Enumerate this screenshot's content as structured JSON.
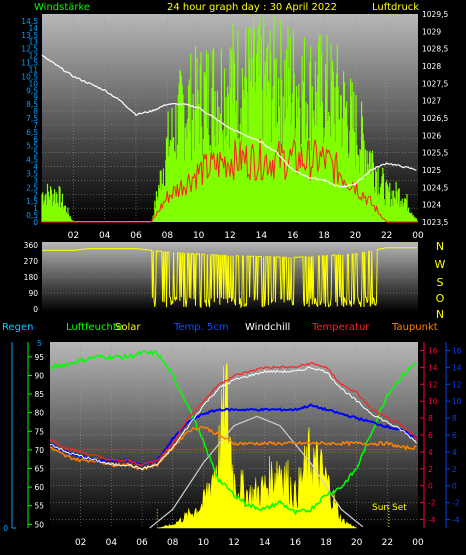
{
  "header": {
    "left_label": "Windstärke",
    "title": "24 hour graph day : 30 April 2022",
    "right_label": "Luftdruck"
  },
  "direction_labels": [
    "N",
    "W",
    "S",
    "O",
    "N"
  ],
  "legend": {
    "regen": "Regen",
    "luftfeuchte": "Luftfeuchte",
    "solar": "Solar",
    "temp5cm": "Temp. 5cm",
    "windchill": "Windchill",
    "temperatur": "Temperatur",
    "taupunkt": "Taupunkt"
  },
  "sunset_label": "Sun Set",
  "colors": {
    "wind_gust": "#80ff00",
    "wind_avg": "#ff2020",
    "pressure": "#ffffff",
    "direction": "#ffff00",
    "humidity": "#00ff00",
    "solar": "#ffff00",
    "temp5cm": "#0000ff",
    "windchill": "#ffffff",
    "temperatur": "#ff2020",
    "taupunkt": "#ff8000",
    "left_axis": "#00a0ff",
    "humidity_axis": "#00ff00",
    "temp_axis": "#ff0040",
    "temp5_axis": "#0040ff"
  },
  "chart_data": [
    {
      "type": "line",
      "name_left_axis": "Windstärke",
      "name_right_axis": "Luftdruck",
      "x_ticks": [
        "02",
        "04",
        "06",
        "08",
        "10",
        "12",
        "14",
        "16",
        "18",
        "20",
        "22",
        "00"
      ],
      "xlim": [
        0,
        24
      ],
      "y_left_ticks": [
        "0",
        "0,5",
        "1",
        "1,5",
        "2",
        "2,5",
        "3",
        "3,5",
        "4",
        "4,5",
        "5",
        "5,5",
        "6",
        "6,5",
        "7",
        "7,5",
        "8",
        "8,5",
        "9",
        "9,5",
        "10",
        "10,5",
        "11",
        "11,5",
        "12",
        "12,5",
        "13",
        "13,5",
        "14",
        "14,5"
      ],
      "ylim_left": [
        0,
        15
      ],
      "y_right_ticks": [
        "1023,5",
        "1024",
        "1024,5",
        "1025",
        "1025,5",
        "1026",
        "1026,5",
        "1027",
        "1027,5",
        "1028",
        "1028,5",
        "1029",
        "1029,5"
      ],
      "ylim_right": [
        1023.5,
        1029.5
      ],
      "pressure": {
        "x": [
          0,
          1,
          2,
          3,
          4,
          5,
          6,
          7,
          8,
          9,
          10,
          11,
          12,
          13,
          14,
          15,
          16,
          17,
          18,
          19,
          20,
          21,
          22,
          23,
          24
        ],
        "y": [
          1028.3,
          1028.0,
          1027.7,
          1027.5,
          1027.3,
          1027.0,
          1026.6,
          1026.7,
          1026.9,
          1026.9,
          1026.8,
          1026.5,
          1026.2,
          1026.0,
          1025.8,
          1025.5,
          1025.0,
          1024.8,
          1024.7,
          1024.5,
          1024.6,
          1025.0,
          1025.2,
          1025.1,
          1025.0
        ]
      },
      "gust_max": {
        "x": [
          0,
          1,
          2,
          3,
          4,
          5,
          6,
          7,
          8,
          9,
          10,
          11,
          12,
          13,
          14,
          15,
          16,
          17,
          18,
          19,
          20,
          21,
          22,
          23,
          24
        ],
        "y": [
          3,
          3,
          0,
          0,
          0,
          0,
          0,
          0,
          8,
          12,
          13,
          14,
          15,
          15,
          15,
          15,
          15,
          14,
          14,
          13,
          10,
          7,
          3,
          3,
          0
        ]
      },
      "wind_avg": {
        "x": [
          0,
          1,
          2,
          3,
          4,
          5,
          6,
          7,
          8,
          9,
          10,
          11,
          12,
          13,
          14,
          15,
          16,
          17,
          18,
          19,
          20,
          21,
          22,
          23,
          24
        ],
        "y": [
          0,
          0,
          0,
          0,
          0,
          0,
          0,
          0,
          2,
          3,
          4,
          4.5,
          5,
          5,
          5,
          5,
          5,
          5,
          5,
          4,
          3,
          1.5,
          0,
          0,
          0
        ]
      }
    },
    {
      "type": "line",
      "name": "Windrichtung",
      "y_ticks": [
        "360",
        "270",
        "180",
        "90",
        "0"
      ],
      "ylim": [
        0,
        360
      ],
      "x": [
        0,
        2,
        3,
        6,
        8,
        12,
        16,
        18,
        20,
        22,
        24
      ],
      "y": [
        330,
        330,
        340,
        340,
        320,
        300,
        290,
        300,
        310,
        345,
        345
      ]
    },
    {
      "type": "line",
      "x_ticks": [
        "02",
        "04",
        "06",
        "08",
        "10",
        "12",
        "14",
        "16",
        "18",
        "20",
        "22",
        "00"
      ],
      "xlim": [
        0,
        24
      ],
      "humidity_axis": {
        "ticks": [
          "50",
          "55",
          "60",
          "65",
          "70",
          "75",
          "80",
          "85",
          "90",
          "95"
        ],
        "range": [
          49,
          99
        ]
      },
      "temp_axis": {
        "ticks": [
          "-4",
          "-2",
          "0",
          "2",
          "4",
          "6",
          "8",
          "10",
          "12",
          "14",
          "16"
        ],
        "range": [
          -5,
          17
        ]
      },
      "temp5_axis": {
        "ticks": [
          "-4",
          "-2",
          "0",
          "2",
          "4",
          "6",
          "8",
          "10",
          "12",
          "14",
          "16"
        ],
        "range": [
          -5,
          17
        ]
      },
      "regen_axis": {
        "ticks": [
          "0",
          "5"
        ],
        "range": [
          0,
          5
        ]
      },
      "humidity": {
        "x": [
          0,
          1,
          2,
          3,
          4,
          5,
          6,
          7,
          8,
          9,
          10,
          11,
          12,
          13,
          14,
          15,
          16,
          17,
          18,
          19,
          20,
          21,
          22,
          23,
          24
        ],
        "y": [
          92,
          93,
          94,
          95,
          95,
          95,
          96,
          96,
          90,
          82,
          72,
          62,
          58,
          55,
          54,
          56,
          53,
          54,
          58,
          60,
          65,
          75,
          85,
          90,
          94
        ]
      },
      "temperatur": {
        "x": [
          0,
          1,
          2,
          3,
          4,
          5,
          6,
          7,
          8,
          9,
          10,
          11,
          12,
          13,
          14,
          15,
          16,
          17,
          18,
          19,
          20,
          21,
          22,
          23,
          24
        ],
        "y": [
          5.5,
          4.5,
          4,
          3.5,
          3,
          3,
          2.5,
          3,
          5,
          8,
          10,
          12,
          13,
          13.5,
          14,
          14,
          14,
          14.5,
          14,
          12,
          11,
          9,
          8,
          7,
          5.5
        ]
      },
      "windchill": {
        "x": [
          0,
          1,
          2,
          3,
          4,
          5,
          6,
          7,
          8,
          9,
          10,
          11,
          12,
          13,
          14,
          15,
          16,
          17,
          18,
          19,
          20,
          21,
          22,
          23,
          24
        ],
        "y": [
          5,
          4,
          3.5,
          3,
          2.5,
          2.5,
          2,
          2.5,
          4.5,
          7,
          9.5,
          11.5,
          12.5,
          13,
          13.5,
          13.5,
          13.5,
          14,
          13.5,
          11.5,
          10,
          8.5,
          7.5,
          6.5,
          5
        ]
      },
      "temp5cm": {
        "x": [
          0,
          1,
          2,
          3,
          4,
          5,
          6,
          7,
          8,
          9,
          10,
          11,
          12,
          13,
          14,
          15,
          16,
          17,
          18,
          19,
          20,
          21,
          22,
          23,
          24
        ],
        "y": [
          5,
          4,
          3.5,
          3,
          3,
          3,
          2.5,
          3,
          5.5,
          7.5,
          8.5,
          9,
          9,
          9,
          9,
          9,
          9,
          9.5,
          9,
          8.5,
          8,
          7.5,
          7,
          6.5,
          5.5
        ]
      },
      "taupunkt": {
        "x": [
          0,
          1,
          2,
          3,
          4,
          5,
          6,
          7,
          8,
          9,
          10,
          11,
          12,
          13,
          14,
          15,
          16,
          17,
          18,
          19,
          20,
          21,
          22,
          23,
          24
        ],
        "y": [
          4.5,
          3.5,
          3,
          3,
          2.5,
          2.5,
          2,
          2.5,
          4.5,
          6.5,
          7,
          6,
          5,
          5,
          5,
          5,
          5,
          5,
          5,
          5,
          5,
          5,
          5,
          4.5,
          4.5
        ]
      },
      "solar_clear": {
        "x": [
          6.5,
          8,
          10,
          12,
          13.5,
          15,
          17,
          19,
          20.5
        ],
        "y": [
          0,
          10,
          35,
          55,
          60,
          55,
          35,
          10,
          0
        ]
      },
      "solar_measured": {
        "x": [
          7,
          8,
          9,
          10,
          11,
          11.5,
          12,
          13,
          14,
          15,
          16,
          17,
          18,
          19,
          20
        ],
        "y": [
          0,
          2,
          8,
          15,
          45,
          80,
          30,
          20,
          25,
          40,
          20,
          45,
          30,
          5,
          0
        ]
      }
    }
  ]
}
